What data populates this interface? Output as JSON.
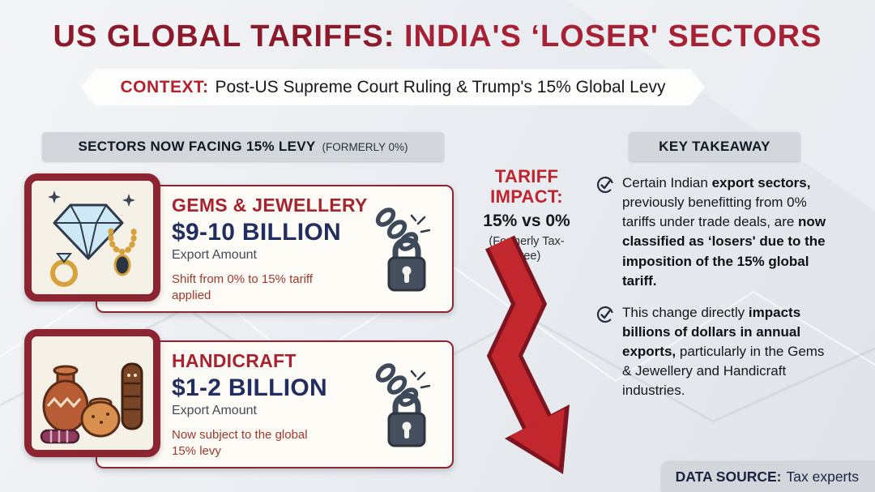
{
  "colors": {
    "maroon": "#8c2531",
    "title_red": "#a72134",
    "accent_red": "#c0242c",
    "navy": "#232e60",
    "badge_gray": "#d3d6da",
    "arrow_red": "#c2272e"
  },
  "header": {
    "title_left": "US GLOBAL TARIFFS:",
    "title_right": "INDIA'S ‘LOSER' SECTORS"
  },
  "context_banner": {
    "label": "CONTEXT:",
    "text": "Post-US Supreme Court Ruling & Trump's 15% Global Levy"
  },
  "left_section": {
    "header": "SECTORS NOW FACING 15% LEVY",
    "header_note": "(FORMERLY 0%)",
    "cards": [
      {
        "icon": "gems-jewellery-illustration",
        "title": "GEMS & JEWELLERY",
        "amount": "$9-10 BILLION",
        "amount_label": "Export Amount",
        "note": "Shift from 0% to 15% tariff applied"
      },
      {
        "icon": "handicraft-illustration",
        "title": "HANDICRAFT",
        "amount": "$1-2 BILLION",
        "amount_label": "Export Amount",
        "note": "Now subject to the global 15% levy"
      }
    ]
  },
  "impact": {
    "label": "TARIFF IMPACT:",
    "value": "15% vs 0%",
    "sub": "(Formerly Tax-Free)"
  },
  "takeaway": {
    "header": "KEY TAKEAWAY",
    "bullets": [
      {
        "segments": [
          {
            "text": "Certain Indian ",
            "bold": false
          },
          {
            "text": "export sectors,",
            "bold": true
          },
          {
            "text": " previously benefitting from 0% tariffs under trade deals, are ",
            "bold": false
          },
          {
            "text": "now classified as ‘losers' due to the imposition of the 15% global tariff.",
            "bold": true
          }
        ]
      },
      {
        "segments": [
          {
            "text": "This change directly ",
            "bold": false
          },
          {
            "text": "impacts billions of dollars in annual exports,",
            "bold": true
          },
          {
            "text": " particularly in the Gems & Jewellery and Handicraft industries.",
            "bold": false
          }
        ]
      }
    ]
  },
  "data_source": {
    "label": "DATA SOURCE:",
    "text": "Tax experts"
  }
}
